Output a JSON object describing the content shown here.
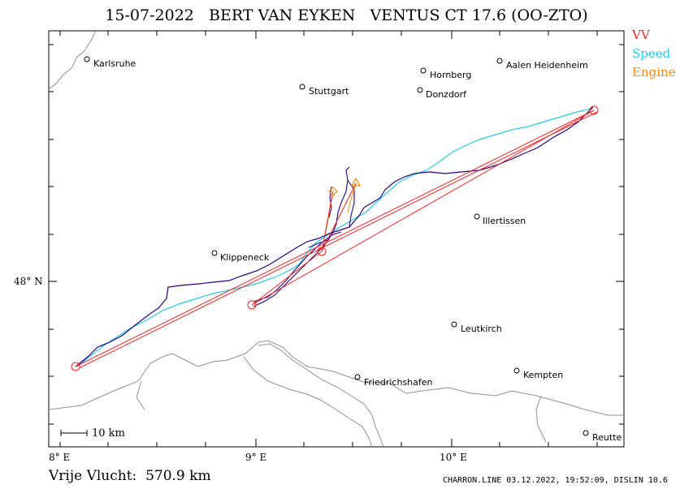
{
  "title": "15-07-2022   BERT VAN EYKEN   VENTUS CT 17.6 (OO-ZTO)",
  "legend": [
    {
      "label": "VV",
      "color": "#ff2020"
    },
    {
      "label": "Speed",
      "color": "#22ccee"
    },
    {
      "label": "Engine",
      "color": "#ff8800"
    }
  ],
  "cities": [
    {
      "name": "Karlsruhe",
      "lon": 8.18,
      "lat": 48.99
    },
    {
      "name": "Stuttgart",
      "lon": 9.23,
      "lat": 48.82
    },
    {
      "name": "Hornberg",
      "lon": 9.86,
      "lat": 48.94
    },
    {
      "name": "Donzdorf",
      "lon": 9.85,
      "lat": 48.81
    },
    {
      "name": "Aalen Heidenheim",
      "lon": 10.25,
      "lat": 48.99
    },
    {
      "name": "Illertissen",
      "lon": 10.13,
      "lat": 48.25
    },
    {
      "name": "Klippeneck",
      "lon": 8.76,
      "lat": 48.1
    },
    {
      "name": "Leutkirch",
      "lon": 10.02,
      "lat": 47.82
    },
    {
      "name": "Friedrichshafen",
      "lon": 9.53,
      "lat": 47.66
    },
    {
      "name": "Kempten",
      "lon": 10.32,
      "lat": 47.72
    },
    {
      "name": "Reutte",
      "lon": 10.71,
      "lat": 47.48
    }
  ],
  "axes": {
    "lon_ticks": [
      {
        "value": 8,
        "label": "8° E"
      },
      {
        "value": 9,
        "label": "9° E"
      },
      {
        "value": 10,
        "label": "10° E"
      }
    ],
    "lat_ticks": [
      {
        "value": 48,
        "label": "48° N"
      }
    ]
  },
  "scale_label": "10 km",
  "turnpoints": [
    {
      "lon": 8.13,
      "lat": 47.66
    },
    {
      "lon": 10.77,
      "lat": 48.72
    },
    {
      "lon": 8.95,
      "lat": 47.95
    },
    {
      "lon": 9.33,
      "lat": 48.14
    }
  ],
  "engine_markers": [
    {
      "lon": 9.41,
      "lat": 48.36
    },
    {
      "lon": 9.53,
      "lat": 48.39
    }
  ],
  "footer": {
    "distance": "Vrije Vlucht:  570.9 km",
    "credit": "CHARRON.LINE 03.12.2022, 19:52:09, DISLIN 10.6"
  }
}
